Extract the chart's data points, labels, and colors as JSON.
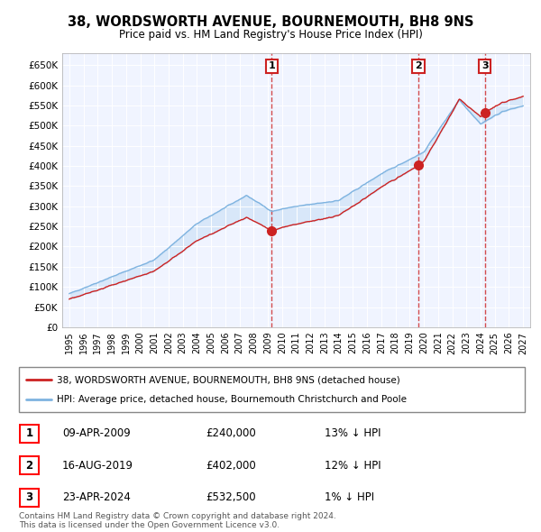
{
  "title": "38, WORDSWORTH AVENUE, BOURNEMOUTH, BH8 9NS",
  "subtitle": "Price paid vs. HM Land Registry's House Price Index (HPI)",
  "hpi_color": "#7eb3e0",
  "price_color": "#cc2222",
  "fill_color": "#c8dff5",
  "plot_bg": "#f0f4ff",
  "sales": [
    {
      "date_num": 2009.27,
      "price": 240000,
      "label": "1"
    },
    {
      "date_num": 2019.62,
      "price": 402000,
      "label": "2"
    },
    {
      "date_num": 2024.31,
      "price": 532500,
      "label": "3"
    }
  ],
  "legend_entries": [
    {
      "color": "#cc2222",
      "label": "38, WORDSWORTH AVENUE, BOURNEMOUTH, BH8 9NS (detached house)"
    },
    {
      "color": "#7eb3e0",
      "label": "HPI: Average price, detached house, Bournemouth Christchurch and Poole"
    }
  ],
  "table_rows": [
    {
      "num": "1",
      "date": "09-APR-2009",
      "price": "£240,000",
      "hpi": "13% ↓ HPI"
    },
    {
      "num": "2",
      "date": "16-AUG-2019",
      "price": "£402,000",
      "hpi": "12% ↓ HPI"
    },
    {
      "num": "3",
      "date": "23-APR-2024",
      "price": "£532,500",
      "hpi": "1% ↓ HPI"
    }
  ],
  "footer": "Contains HM Land Registry data © Crown copyright and database right 2024.\nThis data is licensed under the Open Government Licence v3.0.",
  "yticks": [
    0,
    50000,
    100000,
    150000,
    200000,
    250000,
    300000,
    350000,
    400000,
    450000,
    500000,
    550000,
    600000,
    650000
  ],
  "ytick_labels": [
    "£0",
    "£50K",
    "£100K",
    "£150K",
    "£200K",
    "£250K",
    "£300K",
    "£350K",
    "£400K",
    "£450K",
    "£500K",
    "£550K",
    "£600K",
    "£650K"
  ],
  "xmin": 1994.5,
  "xmax": 2027.5,
  "ymax": 680000
}
